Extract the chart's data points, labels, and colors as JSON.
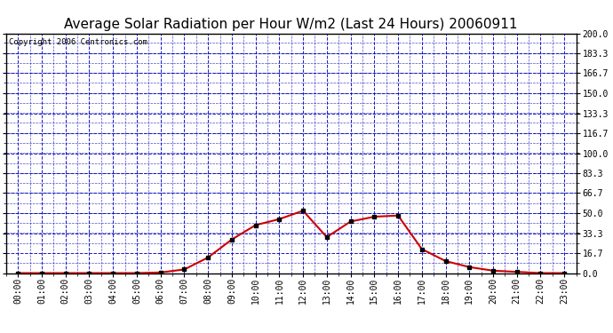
{
  "title": "Average Solar Radiation per Hour W/m2 (Last 24 Hours) 20060911",
  "copyright": "Copyright 2006 Centronics.com",
  "hours": [
    "00:00",
    "01:00",
    "02:00",
    "03:00",
    "04:00",
    "05:00",
    "06:00",
    "07:00",
    "08:00",
    "09:00",
    "10:00",
    "11:00",
    "12:00",
    "13:00",
    "14:00",
    "15:00",
    "16:00",
    "17:00",
    "18:00",
    "19:00",
    "20:00",
    "21:00",
    "22:00",
    "23:00"
  ],
  "values": [
    0.0,
    0.0,
    0.0,
    0.0,
    0.0,
    0.0,
    0.5,
    3.0,
    13.0,
    28.0,
    40.0,
    45.0,
    52.0,
    30.0,
    43.0,
    47.0,
    48.0,
    20.0,
    10.0,
    5.0,
    2.0,
    1.0,
    0.0,
    0.0
  ],
  "ylim": [
    0.0,
    200.0
  ],
  "yticks": [
    0.0,
    16.7,
    33.3,
    50.0,
    66.7,
    83.3,
    100.0,
    116.7,
    133.3,
    150.0,
    166.7,
    183.3,
    200.0
  ],
  "line_color": "#cc0000",
  "marker_color": "#000000",
  "grid_major_color": "#0000bb",
  "grid_minor_color": "#0000bb",
  "bg_color": "#ffffff",
  "plot_bg_color": "#ffffff",
  "title_fontsize": 11,
  "copyright_fontsize": 6.5,
  "tick_fontsize": 7
}
